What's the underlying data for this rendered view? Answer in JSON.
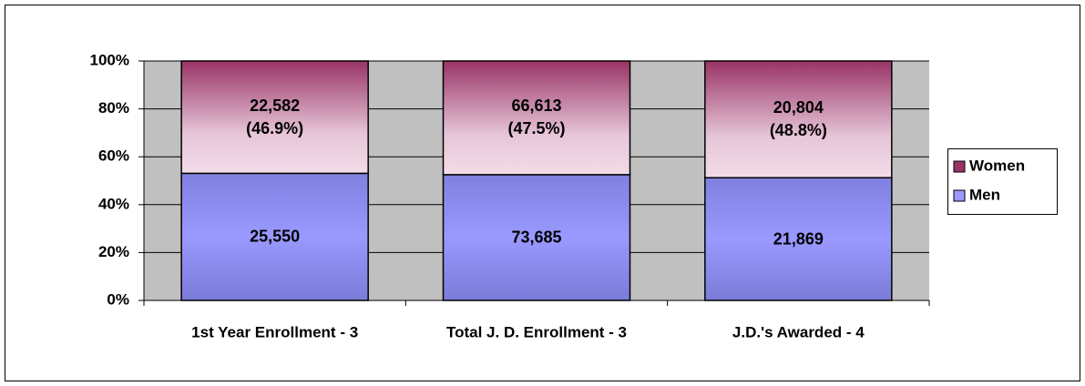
{
  "chart_data": {
    "type": "stacked_percent_bar",
    "categories": [
      "1st Year Enrollment - 3",
      "Total J. D. Enrollment - 3",
      "J.D.'s Awarded - 4"
    ],
    "series": [
      {
        "name": "Men",
        "color": "#9999ff",
        "values": [
          25550,
          73685,
          21869
        ],
        "value_labels": [
          "25,550",
          "73,685",
          "21,869"
        ]
      },
      {
        "name": "Women",
        "color": "#993366",
        "values": [
          22582,
          66613,
          20804
        ],
        "value_labels": [
          "22,582\n(46.9%)",
          "66,613\n(47.5%)",
          "20,804\n(48.8%)"
        ]
      }
    ],
    "ylim": [
      0,
      100
    ],
    "yticks": [
      {
        "value": 0,
        "label": "0%"
      },
      {
        "value": 20,
        "label": "20%"
      },
      {
        "value": 40,
        "label": "40%"
      },
      {
        "value": 60,
        "label": "60%"
      },
      {
        "value": 80,
        "label": "80%"
      },
      {
        "value": 100,
        "label": "100%"
      }
    ],
    "grid": true,
    "legend": "right"
  }
}
